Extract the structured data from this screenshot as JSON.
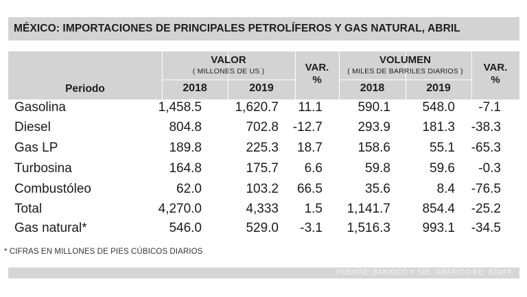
{
  "title": "MÉXICO: IMPORTACIONES DE PRINCIPALES PETROLÍFEROS Y GAS NATURAL, ABRIL",
  "header": {
    "periodo": "Periodo",
    "valor_label": "VALOR",
    "valor_unit": "( MILLONES DE US )",
    "var_label": "VAR.",
    "var_unit": "%",
    "volumen_label": "VOLUMEN",
    "volumen_unit": "( MILES DE BARRILES DIARIOS )",
    "year1": "2018",
    "year2": "2019"
  },
  "rows": [
    {
      "label": "Gasolina",
      "v2018": "1,458.5",
      "v2019": "1,620.7",
      "var": "11.1",
      "vol2018": "590.1",
      "vol2019": "548.0",
      "volvar": "-7.1"
    },
    {
      "label": "Diesel",
      "v2018": "804.8",
      "v2019": "702.8",
      "var": "-12.7",
      "vol2018": "293.9",
      "vol2019": "181.3",
      "volvar": "-38.3"
    },
    {
      "label": "Gas LP",
      "v2018": "189.8",
      "v2019": "225.3",
      "var": "18.7",
      "vol2018": "158.6",
      "vol2019": "55.1",
      "volvar": "-65.3"
    },
    {
      "label": "Turbosina",
      "v2018": "164.8",
      "v2019": "175.7",
      "var": "6.6",
      "vol2018": "59.8",
      "vol2019": "59.6",
      "volvar": "-0.3"
    },
    {
      "label": "Combustóleo",
      "v2018": "62.0",
      "v2019": "103.2",
      "var": "66.5",
      "vol2018": "35.6",
      "vol2019": "8.4",
      "volvar": "-76.5"
    },
    {
      "label": "Total",
      "v2018": "4,270.0",
      "v2019": "4,333",
      "var": "1.5",
      "vol2018": "1,141.7",
      "vol2019": "854.4",
      "volvar": "-25.2"
    },
    {
      "label": "Gas natural*",
      "v2018": "546.0",
      "v2019": "529.0",
      "var": "-3.1",
      "vol2018": "1,516.3",
      "vol2019": "993.1",
      "volvar": "-34.5"
    }
  ],
  "footnote": "* CIFRAS EN MILLONES DE PIES CÚBICOS DIARIOS",
  "source": "FUENTE: BANXICO Y SIE. GRÁFICO EE: STAFF."
}
